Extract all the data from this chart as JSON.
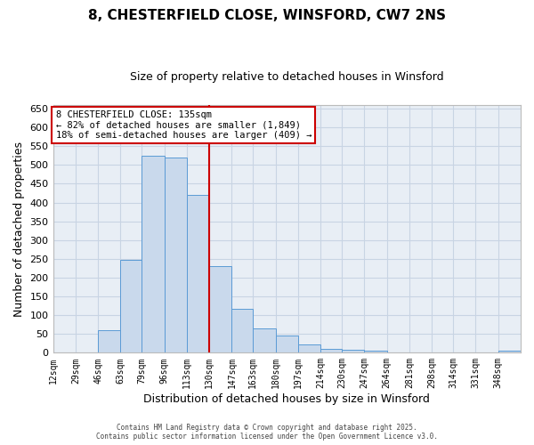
{
  "title": "8, CHESTERFIELD CLOSE, WINSFORD, CW7 2NS",
  "subtitle": "Size of property relative to detached houses in Winsford",
  "xlabel": "Distribution of detached houses by size in Winsford",
  "ylabel": "Number of detached properties",
  "bin_edges": [
    12,
    29,
    46,
    63,
    79,
    96,
    113,
    130,
    147,
    163,
    180,
    197,
    214,
    230,
    247,
    264,
    281,
    298,
    314,
    331,
    348,
    365
  ],
  "bar_heights": [
    0,
    0,
    60,
    248,
    525,
    520,
    420,
    230,
    118,
    65,
    45,
    22,
    10,
    8,
    5,
    0,
    0,
    0,
    0,
    0,
    5
  ],
  "bar_color": "#c9d9ec",
  "bar_edge_color": "#5b9bd5",
  "vline_x": 130,
  "vline_color": "#cc0000",
  "ylim": [
    0,
    660
  ],
  "yticks": [
    0,
    50,
    100,
    150,
    200,
    250,
    300,
    350,
    400,
    450,
    500,
    550,
    600,
    650
  ],
  "annotation_title": "8 CHESTERFIELD CLOSE: 135sqm",
  "annotation_line1": "← 82% of detached houses are smaller (1,849)",
  "annotation_line2": "18% of semi-detached houses are larger (409) →",
  "annotation_box_color": "#ffffff",
  "annotation_border_color": "#cc0000",
  "background_color": "#ffffff",
  "plot_bg_color": "#e8eef5",
  "grid_color": "#c8d4e3",
  "footer_line1": "Contains HM Land Registry data © Crown copyright and database right 2025.",
  "footer_line2": "Contains public sector information licensed under the Open Government Licence v3.0.",
  "tick_labels": [
    "12sqm",
    "29sqm",
    "46sqm",
    "63sqm",
    "79sqm",
    "96sqm",
    "113sqm",
    "130sqm",
    "147sqm",
    "163sqm",
    "180sqm",
    "197sqm",
    "214sqm",
    "230sqm",
    "247sqm",
    "264sqm",
    "281sqm",
    "298sqm",
    "314sqm",
    "331sqm",
    "348sqm"
  ]
}
